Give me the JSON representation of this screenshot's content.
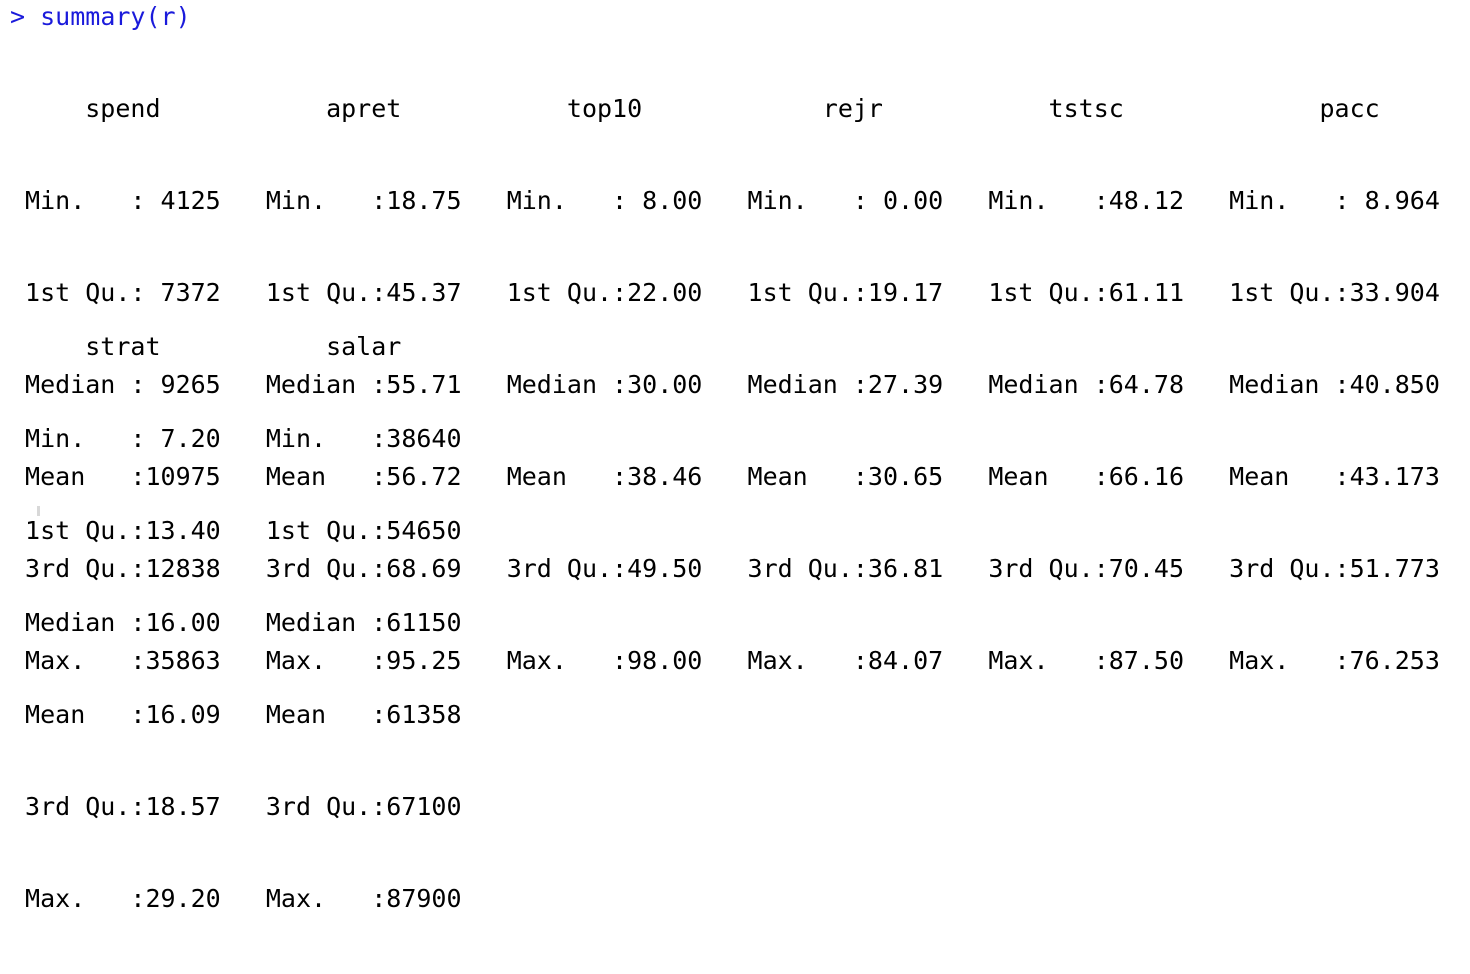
{
  "console": {
    "prompt_symbol": ">",
    "command": "summary(r)",
    "block1": {
      "header": "     spend           apret           top10            rejr           tstsc             pacc     ",
      "rows": [
        " Min.   : 4125   Min.   :18.75   Min.   : 8.00   Min.   : 0.00   Min.   :48.12   Min.   : 8.964  ",
        " 1st Qu.: 7372   1st Qu.:45.37   1st Qu.:22.00   1st Qu.:19.17   1st Qu.:61.11   1st Qu.:33.904  ",
        " Median : 9265   Median :55.71   Median :30.00   Median :27.39   Median :64.78   Median :40.850  ",
        " Mean   :10975   Mean   :56.72   Mean   :38.46   Mean   :30.65   Mean   :66.16   Mean   :43.173  ",
        " 3rd Qu.:12838   3rd Qu.:68.69   3rd Qu.:49.50   3rd Qu.:36.81   3rd Qu.:70.45   3rd Qu.:51.773  ",
        " Max.   :35863   Max.   :95.25   Max.   :98.00   Max.   :84.07   Max.   :87.50   Max.   :76.253  "
      ]
    },
    "block2": {
      "header": "     strat           salar      ",
      "rows": [
        " Min.   : 7.20   Min.   :38640  ",
        " 1st Qu.:13.40   1st Qu.:54650  ",
        " Median :16.00   Median :61150  ",
        " Mean   :16.09   Mean   :61358  ",
        " 3rd Qu.:18.57   3rd Qu.:67100  ",
        " Max.   :29.20   Max.   :87900  "
      ]
    },
    "colors": {
      "prompt": "#1a1adb",
      "output": "#000000",
      "background": "#ffffff"
    }
  }
}
